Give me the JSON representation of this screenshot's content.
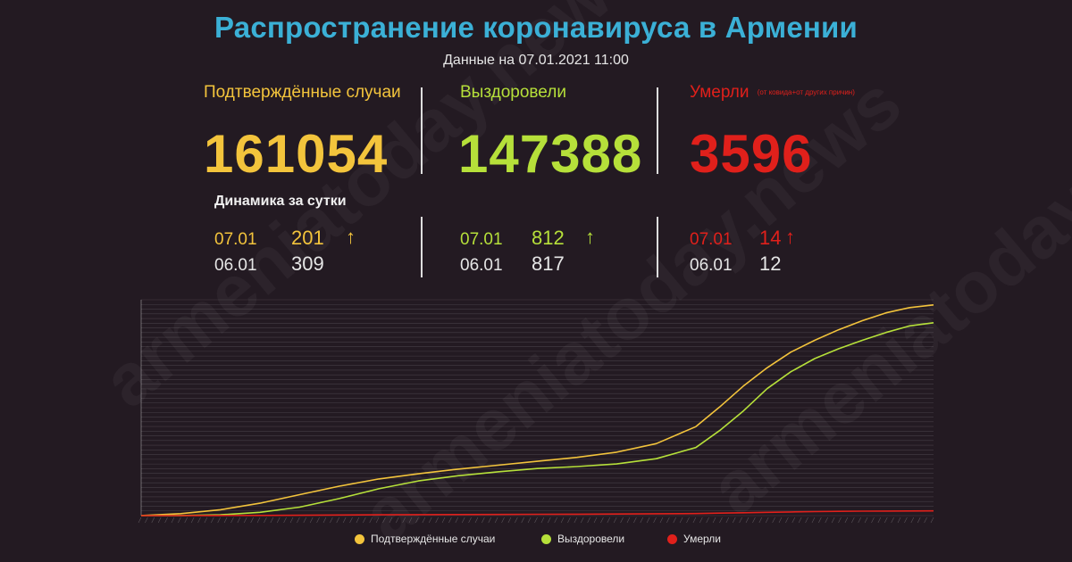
{
  "header": {
    "title": "Распространение коронавируса в Армении",
    "subtitle": "Данные на 07.01.2021 11:00"
  },
  "stats": {
    "confirmed": {
      "label": "Подтверждённые случаи",
      "value": "161054",
      "color": "#f3c43c"
    },
    "recovered": {
      "label": "Выздоровели",
      "value": "147388",
      "color": "#b6e03a"
    },
    "deaths": {
      "label": "Умерли",
      "note": "(от ковида+от других причин)",
      "value": "3596",
      "color": "#e0201b"
    }
  },
  "dynamics": {
    "title": "Динамика за сутки",
    "confirmed": {
      "today_date": "07.01",
      "today_value": "201",
      "prev_date": "06.01",
      "prev_value": "309",
      "trend_icon": "↑"
    },
    "recovered": {
      "today_date": "07.01",
      "today_value": "812",
      "prev_date": "06.01",
      "prev_value": "817",
      "trend_icon": "↑"
    },
    "deaths": {
      "today_date": "07.01",
      "today_value": "14",
      "prev_date": "06.01",
      "prev_value": "12",
      "trend_icon": "↑"
    }
  },
  "watermark": "armeniatoday.news",
  "legend": [
    {
      "label": "Подтверждённые случаи",
      "color": "#f3c43c"
    },
    {
      "label": "Выздоровели",
      "color": "#b6e03a"
    },
    {
      "label": "Умерли",
      "color": "#e0201b"
    }
  ],
  "chart_data": {
    "type": "line",
    "grid": true,
    "ylim": [
      0,
      165000
    ],
    "x_progress": [
      0,
      0.05,
      0.1,
      0.15,
      0.2,
      0.25,
      0.3,
      0.35,
      0.4,
      0.45,
      0.5,
      0.55,
      0.6,
      0.65,
      0.7,
      0.73,
      0.76,
      0.79,
      0.82,
      0.85,
      0.88,
      0.91,
      0.94,
      0.97,
      1.0
    ],
    "series": [
      {
        "name": "Подтверждённые случаи",
        "color": "#f3c43c",
        "values": [
          100,
          1500,
          4500,
          9500,
          16000,
          22500,
          28000,
          32000,
          35500,
          38500,
          41500,
          44500,
          48500,
          55000,
          68000,
          83000,
          99000,
          113000,
          125000,
          134000,
          142000,
          149000,
          155000,
          159000,
          161054
        ]
      },
      {
        "name": "Выздоровели",
        "color": "#b6e03a",
        "values": [
          0,
          100,
          600,
          2500,
          6500,
          13000,
          20500,
          26500,
          30500,
          33500,
          36000,
          37500,
          39500,
          43500,
          52000,
          65000,
          80000,
          97000,
          110000,
          120000,
          127500,
          134000,
          140000,
          145000,
          147388
        ]
      },
      {
        "name": "Умерли",
        "color": "#e0201b",
        "values": [
          0,
          15,
          60,
          150,
          300,
          450,
          600,
          720,
          820,
          920,
          1000,
          1080,
          1200,
          1400,
          1600,
          1900,
          2200,
          2500,
          2800,
          3050,
          3250,
          3400,
          3500,
          3560,
          3596
        ]
      }
    ]
  }
}
